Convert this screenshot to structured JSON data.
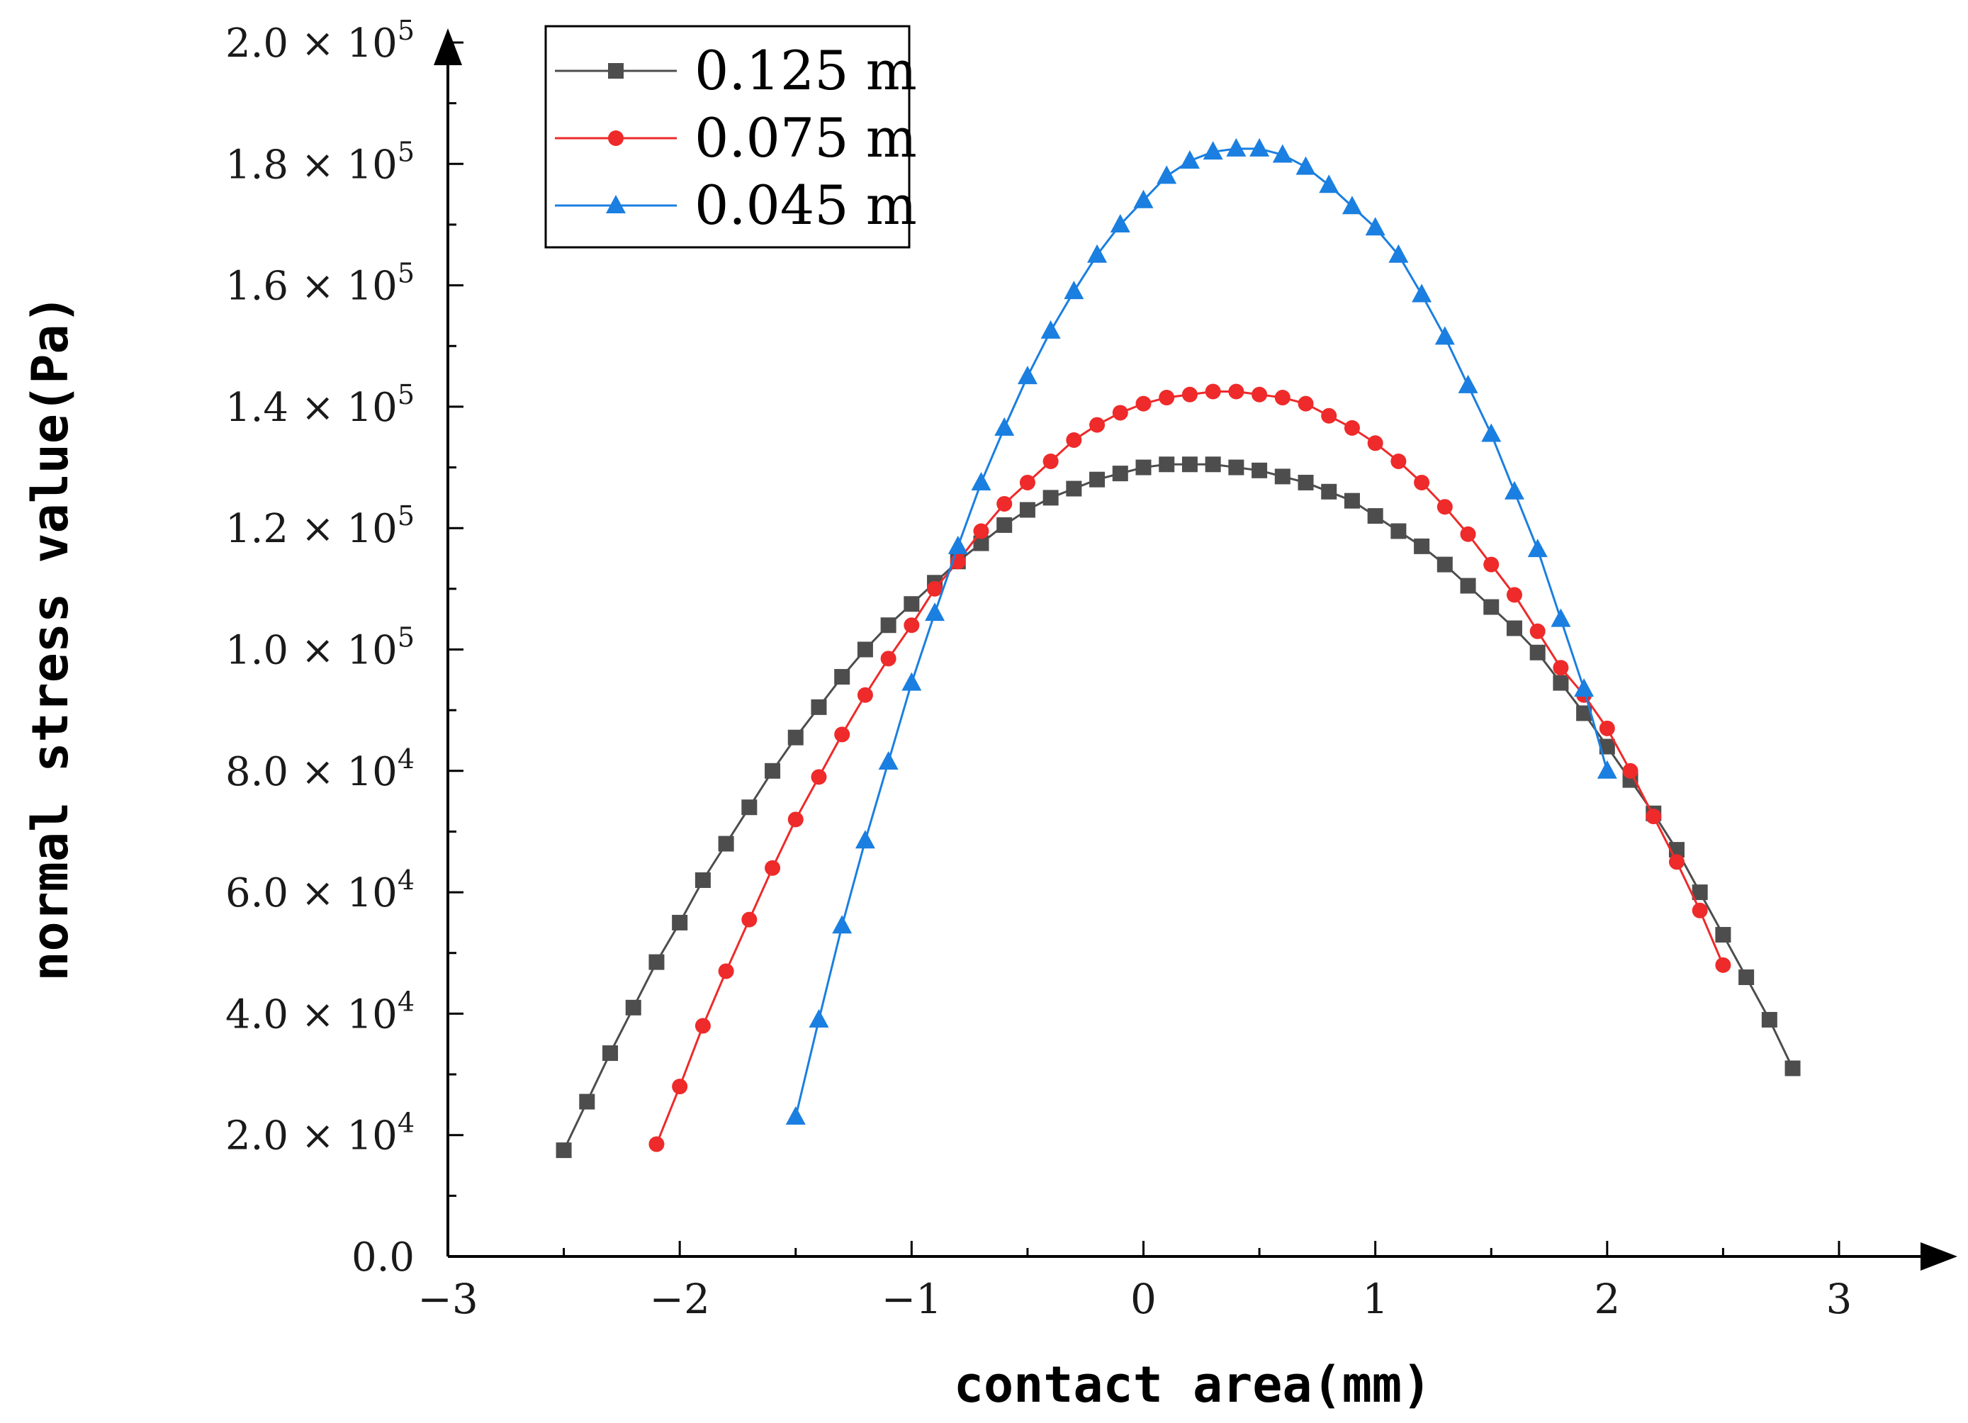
{
  "chart_data": {
    "type": "line",
    "xlabel": "contact area(mm)",
    "ylabel": "normal stress value(Pa)",
    "xlim": [
      -3,
      3
    ],
    "ylim": [
      0,
      200000
    ],
    "x_ticks": [
      -3,
      -2,
      -1,
      0,
      1,
      2,
      3
    ],
    "x_tick_labels": [
      "−3",
      "−2",
      "−1",
      "0",
      "1",
      "2",
      "3"
    ],
    "y_ticks": [
      {
        "value": 0,
        "mantissa": "0.0",
        "exp": ""
      },
      {
        "value": 20000,
        "mantissa": "2.0 × 10",
        "exp": "4"
      },
      {
        "value": 40000,
        "mantissa": "4.0 × 10",
        "exp": "4"
      },
      {
        "value": 60000,
        "mantissa": "6.0 × 10",
        "exp": "4"
      },
      {
        "value": 80000,
        "mantissa": "8.0 × 10",
        "exp": "4"
      },
      {
        "value": 100000,
        "mantissa": "1.0 × 10",
        "exp": "5"
      },
      {
        "value": 120000,
        "mantissa": "1.2 × 10",
        "exp": "5"
      },
      {
        "value": 140000,
        "mantissa": "1.4 × 10",
        "exp": "5"
      },
      {
        "value": 160000,
        "mantissa": "1.6 × 10",
        "exp": "5"
      },
      {
        "value": 180000,
        "mantissa": "1.8 × 10",
        "exp": "5"
      },
      {
        "value": 200000,
        "mantissa": "2.0 × 10",
        "exp": "5"
      }
    ],
    "legend_position": "top-left",
    "series": [
      {
        "name": "0.125 m",
        "color": "#4d4d4d",
        "marker": "square",
        "x": [
          -2.5,
          -2.4,
          -2.3,
          -2.2,
          -2.1,
          -2.0,
          -1.9,
          -1.8,
          -1.7,
          -1.6,
          -1.5,
          -1.4,
          -1.3,
          -1.2,
          -1.1,
          -1.0,
          -0.9,
          -0.8,
          -0.7,
          -0.6,
          -0.5,
          -0.4,
          -0.3,
          -0.2,
          -0.1,
          0.0,
          0.1,
          0.2,
          0.3,
          0.4,
          0.5,
          0.6,
          0.7,
          0.8,
          0.9,
          1.0,
          1.1,
          1.2,
          1.3,
          1.4,
          1.5,
          1.6,
          1.7,
          1.8,
          1.9,
          2.0,
          2.1,
          2.2,
          2.3,
          2.4,
          2.5,
          2.6,
          2.7,
          2.8
        ],
        "y": [
          17500,
          25500,
          33500,
          41000,
          48500,
          55000,
          62000,
          68000,
          74000,
          80000,
          85500,
          90500,
          95500,
          100000,
          104000,
          107500,
          111000,
          114500,
          117500,
          120500,
          123000,
          125000,
          126500,
          128000,
          129000,
          130000,
          130500,
          130500,
          130500,
          130000,
          129500,
          128500,
          127500,
          126000,
          124500,
          122000,
          119500,
          117000,
          114000,
          110500,
          107000,
          103500,
          99500,
          94500,
          89500,
          84000,
          78500,
          73000,
          67000,
          60000,
          53000,
          46000,
          39000,
          31000
        ]
      },
      {
        "name": "0.075 m",
        "color": "#ee2a2a",
        "marker": "circle",
        "x": [
          -2.1,
          -2.0,
          -1.9,
          -1.8,
          -1.7,
          -1.6,
          -1.5,
          -1.4,
          -1.3,
          -1.2,
          -1.1,
          -1.0,
          -0.9,
          -0.8,
          -0.7,
          -0.6,
          -0.5,
          -0.4,
          -0.3,
          -0.2,
          -0.1,
          0.0,
          0.1,
          0.2,
          0.3,
          0.4,
          0.5,
          0.6,
          0.7,
          0.8,
          0.9,
          1.0,
          1.1,
          1.2,
          1.3,
          1.4,
          1.5,
          1.6,
          1.7,
          1.8,
          1.9,
          2.0,
          2.1,
          2.2,
          2.3,
          2.4,
          2.5
        ],
        "y": [
          18500,
          28000,
          38000,
          47000,
          55500,
          64000,
          72000,
          79000,
          86000,
          92500,
          98500,
          104000,
          110000,
          114500,
          119500,
          124000,
          127500,
          131000,
          134500,
          137000,
          139000,
          140500,
          141500,
          142000,
          142500,
          142500,
          142000,
          141500,
          140500,
          138500,
          136500,
          134000,
          131000,
          127500,
          123500,
          119000,
          114000,
          109000,
          103000,
          97000,
          92500,
          87000,
          80000,
          72500,
          65000,
          57000,
          48000
        ]
      },
      {
        "name": "0.045 m",
        "color": "#1a7fe0",
        "marker": "triangle",
        "x": [
          -1.5,
          -1.4,
          -1.3,
          -1.2,
          -1.1,
          -1.0,
          -0.9,
          -0.8,
          -0.7,
          -0.6,
          -0.5,
          -0.4,
          -0.3,
          -0.2,
          -0.1,
          0.0,
          0.1,
          0.2,
          0.3,
          0.4,
          0.5,
          0.6,
          0.7,
          0.8,
          0.9,
          1.0,
          1.1,
          1.2,
          1.3,
          1.4,
          1.5,
          1.6,
          1.7,
          1.8,
          1.9,
          2.0
        ],
        "y": [
          23000,
          39000,
          54500,
          68500,
          81500,
          94500,
          106000,
          117000,
          127500,
          136500,
          145000,
          152500,
          159000,
          165000,
          170000,
          174000,
          178000,
          180500,
          182000,
          182500,
          182500,
          181500,
          179500,
          176500,
          173000,
          169500,
          165000,
          158500,
          151500,
          143500,
          135500,
          126000,
          116500,
          105000,
          93500,
          80000
        ]
      }
    ]
  }
}
